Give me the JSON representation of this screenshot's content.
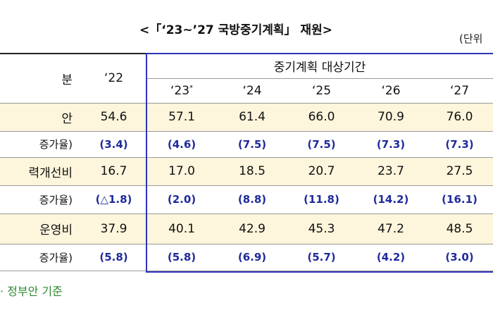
{
  "title": "<「‘23~’27 국방중기계획」 재원>",
  "unit": "(단위",
  "header": {
    "label": "분",
    "first_year": "‘22",
    "period": "중기계획 대상기간",
    "years": [
      "‘23",
      "‘24",
      "‘25",
      "‘26",
      "‘27"
    ],
    "year_mark": "*"
  },
  "rows": [
    [
      "안",
      "54.6",
      "57.1",
      "61.4",
      "66.0",
      "70.9",
      "76.0"
    ],
    [
      "증가율)",
      "(3.4)",
      "(4.6)",
      "(7.5)",
      "(7.5)",
      "(7.3)",
      "(7.3)"
    ],
    [
      "력개선비",
      "16.7",
      "17.0",
      "18.5",
      "20.7",
      "23.7",
      "27.5"
    ],
    [
      "증가율)",
      "(△1.8)",
      "(2.0)",
      "(8.8)",
      "(11.8)",
      "(14.2)",
      "(16.1)"
    ],
    [
      "운영비",
      "37.9",
      "40.1",
      "42.9",
      "45.3",
      "47.2",
      "48.5"
    ],
    [
      "증가율)",
      "(5.8)",
      "(5.8)",
      "(6.9)",
      "(5.7)",
      "(4.2)",
      "(3.0)"
    ]
  ],
  "footnote": "· 정부안 기준"
}
